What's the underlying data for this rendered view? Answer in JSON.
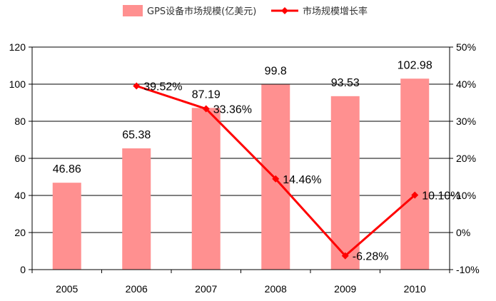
{
  "chart_data": {
    "type": "bar+line",
    "categories": [
      "2005",
      "2006",
      "2007",
      "2008",
      "2009",
      "2010"
    ],
    "series": [
      {
        "name": "GPS设备市场规模(亿美元)",
        "type": "bar",
        "axis": "left",
        "values": [
          46.86,
          65.38,
          87.19,
          99.8,
          93.53,
          102.98
        ],
        "labels": [
          "46.86",
          "65.38",
          "87.19",
          "99.8",
          "93.53",
          "102.98"
        ]
      },
      {
        "name": "市场规模增长率",
        "type": "line",
        "axis": "right",
        "values": [
          null,
          39.52,
          33.36,
          14.46,
          -6.28,
          10.1
        ],
        "labels": [
          "",
          "39.52%",
          "33.36%",
          "14.46%",
          "-6.28%",
          "10.10%"
        ]
      }
    ],
    "left_axis": {
      "min": 0,
      "max": 120,
      "ticks": [
        "0",
        "20",
        "40",
        "60",
        "80",
        "100",
        "120"
      ]
    },
    "right_axis": {
      "min": -10,
      "max": 50,
      "ticks": [
        "-10%",
        "0%",
        "10%",
        "20%",
        "30%",
        "40%",
        "50%"
      ]
    },
    "grid": true,
    "legend_position": "top",
    "colors": {
      "bar": "#ff9090",
      "line": "#ff0000",
      "grid": "#000000"
    }
  }
}
